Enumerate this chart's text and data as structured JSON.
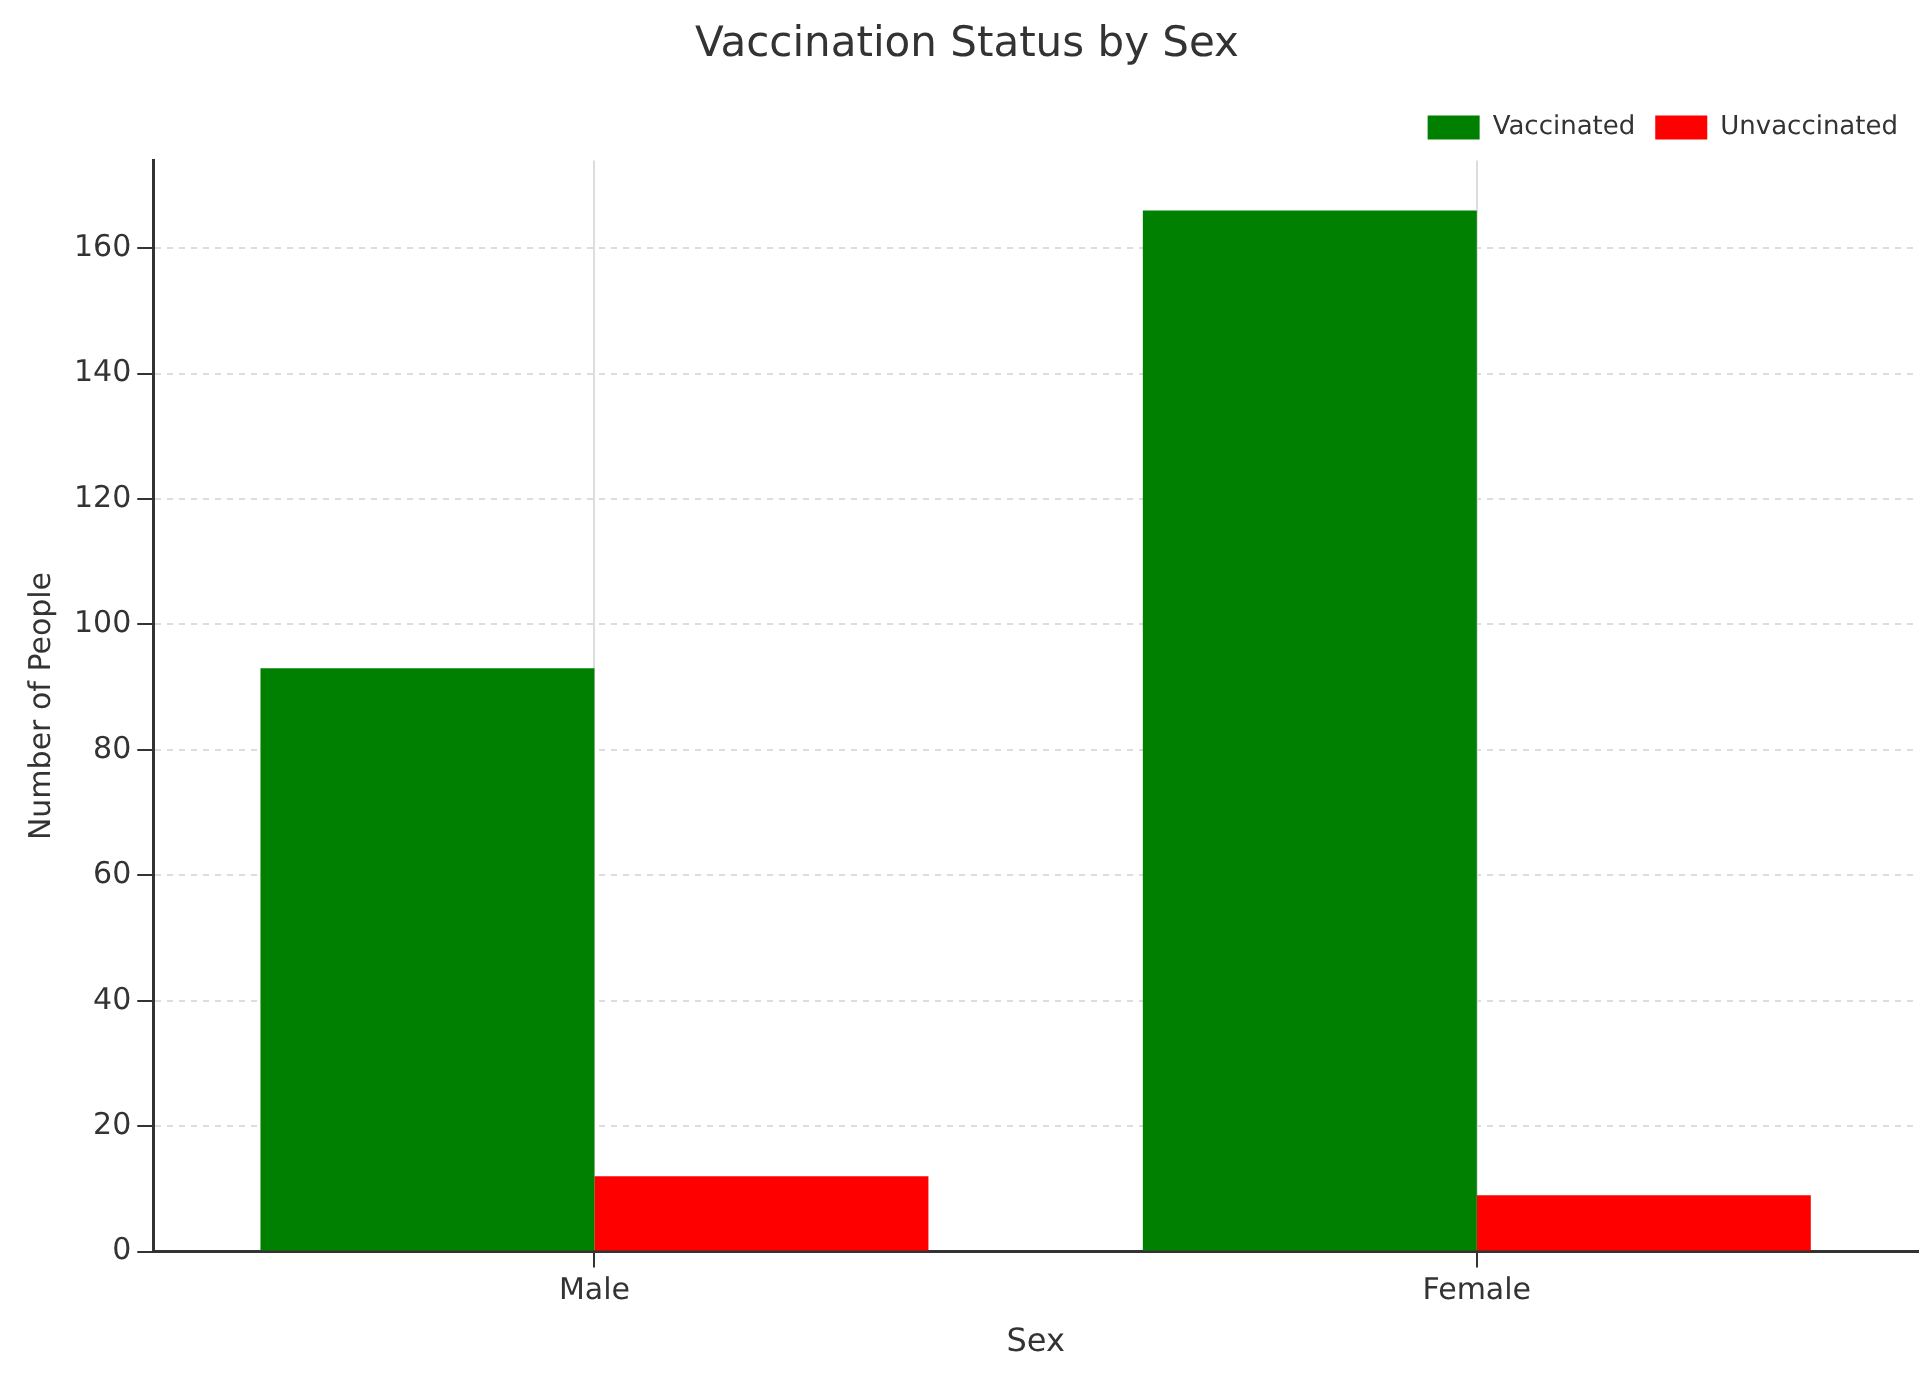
{
  "chart_data": {
    "type": "bar",
    "title": "Vaccination Status by Sex",
    "xlabel": "Sex",
    "ylabel": "Number of People",
    "categories": [
      "Male",
      "Female"
    ],
    "series": [
      {
        "name": "Vaccinated",
        "color": "#008000",
        "values": [
          93,
          166
        ]
      },
      {
        "name": "Unvaccinated",
        "color": "#ff0000",
        "values": [
          12,
          9
        ]
      }
    ],
    "ylim": [
      0,
      174
    ],
    "yticks": [
      0,
      20,
      40,
      60,
      80,
      100,
      120,
      140,
      160
    ],
    "grid": true,
    "legend": "top right"
  }
}
